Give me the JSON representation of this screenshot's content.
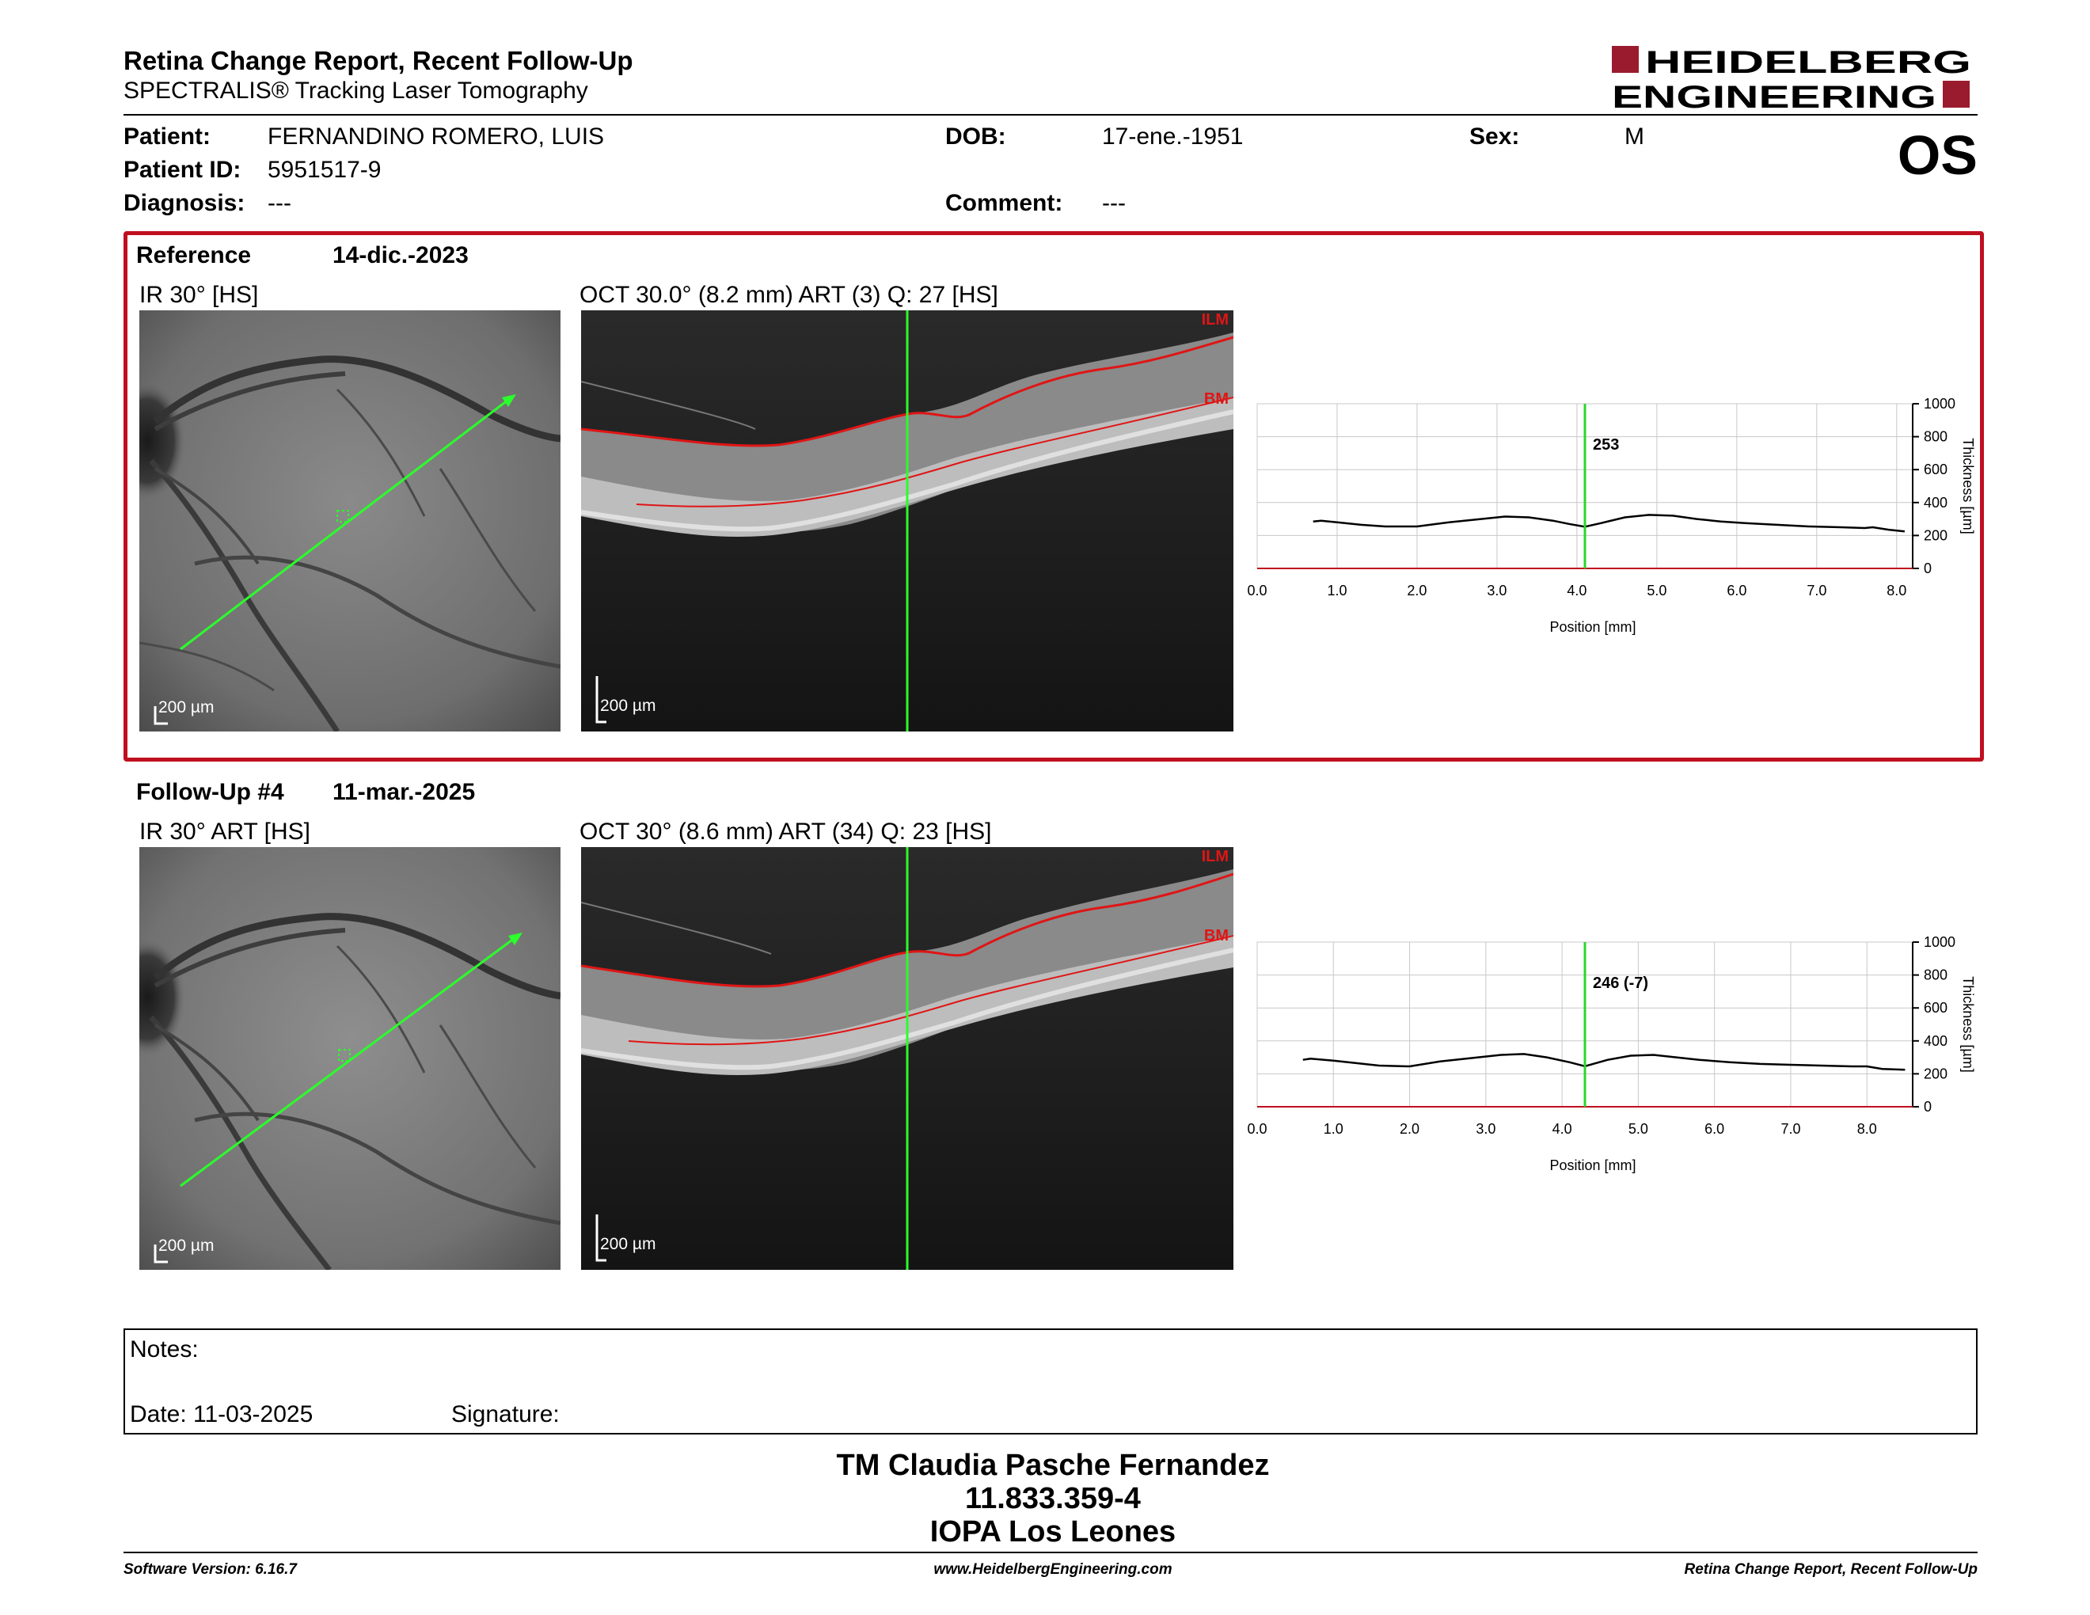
{
  "header": {
    "title": "Retina Change Report, Recent Follow-Up",
    "subtitle": "SPECTRALIS® Tracking Laser Tomography",
    "brand_line1": "HEIDELBERG",
    "brand_line2": "ENGINEERING",
    "brand_color": "#9b1b2e"
  },
  "patient": {
    "patient_label": "Patient:",
    "patient_value": "FERNANDINO ROMERO, LUIS",
    "id_label": "Patient ID:",
    "id_value": "5951517-9",
    "diagnosis_label": "Diagnosis:",
    "diagnosis_value": "---",
    "dob_label": "DOB:",
    "dob_value": "17-ene.-1951",
    "comment_label": "Comment:",
    "comment_value": "---",
    "sex_label": "Sex:",
    "sex_value": "M",
    "eye": "OS"
  },
  "reference": {
    "label": "Reference",
    "date": "14-dic.-2023",
    "ir_title": "IR 30° [HS]",
    "oct_title": "OCT 30.0° (8.2 mm) ART (3) Q: 27 [HS]",
    "ir_scale": "200 µm",
    "oct_scale": "200 µm",
    "ilm_tag": "ILM",
    "bm_tag": "BM"
  },
  "followup": {
    "label": "Follow-Up #4",
    "date": "11-mar.-2025",
    "ir_title": "IR 30° ART [HS]",
    "oct_title": "OCT 30° (8.6 mm) ART (34) Q: 23 [HS]",
    "ir_scale": "200 µm",
    "oct_scale": "200 µm",
    "ilm_tag": "ILM",
    "bm_tag": "BM"
  },
  "chart_data": [
    {
      "type": "line",
      "xlabel": "Position [mm]",
      "ylabel": "Thickness [µm]",
      "xlim": [
        0,
        8.2
      ],
      "ylim": [
        0,
        1000
      ],
      "xticks": [
        "0.0",
        "1.0",
        "2.0",
        "3.0",
        "4.0",
        "5.0",
        "6.0",
        "7.0",
        "8.0"
      ],
      "yticks": [
        "0",
        "200",
        "400",
        "600",
        "800",
        "1000"
      ],
      "grid": true,
      "marker_x": 4.1,
      "marker_label": "253",
      "x": [
        0.7,
        0.8,
        1.0,
        1.3,
        1.6,
        2.0,
        2.4,
        2.8,
        3.1,
        3.4,
        3.7,
        3.9,
        4.1,
        4.3,
        4.6,
        4.9,
        5.2,
        5.5,
        5.8,
        6.1,
        6.5,
        6.9,
        7.3,
        7.6,
        7.7,
        7.9,
        8.1
      ],
      "y": [
        285,
        290,
        280,
        265,
        255,
        255,
        280,
        300,
        315,
        310,
        290,
        270,
        253,
        275,
        310,
        325,
        320,
        300,
        285,
        275,
        265,
        255,
        250,
        245,
        250,
        235,
        225
      ]
    },
    {
      "type": "line",
      "xlabel": "Position [mm]",
      "ylabel": "Thickness [µm]",
      "xlim": [
        0,
        8.6
      ],
      "ylim": [
        0,
        1000
      ],
      "xticks": [
        "0.0",
        "1.0",
        "2.0",
        "3.0",
        "4.0",
        "5.0",
        "6.0",
        "7.0",
        "8.0"
      ],
      "yticks": [
        "0",
        "200",
        "400",
        "600",
        "800",
        "1000"
      ],
      "grid": true,
      "marker_x": 4.3,
      "marker_label": "246 (-7)",
      "x": [
        0.6,
        0.7,
        1.0,
        1.3,
        1.6,
        2.0,
        2.4,
        2.8,
        3.2,
        3.5,
        3.8,
        4.1,
        4.3,
        4.6,
        4.9,
        5.2,
        5.5,
        5.8,
        6.2,
        6.6,
        7.0,
        7.4,
        7.8,
        8.0,
        8.2,
        8.5
      ],
      "y": [
        285,
        292,
        280,
        265,
        250,
        245,
        275,
        295,
        315,
        320,
        300,
        270,
        246,
        285,
        310,
        315,
        300,
        285,
        270,
        260,
        255,
        250,
        245,
        245,
        230,
        225
      ]
    }
  ],
  "notes": {
    "notes_label": "Notes:",
    "date_label": "Date: 11-03-2025",
    "signature_label": "Signature:"
  },
  "footer": {
    "line1": "TM Claudia Pasche Fernandez",
    "line2": "11.833.359-4",
    "line3": "IOPA Los Leones",
    "software": "Software Version: 6.16.7",
    "website": "www.HeidelbergEngineering.com",
    "report_name": "Retina Change Report, Recent Follow-Up"
  }
}
